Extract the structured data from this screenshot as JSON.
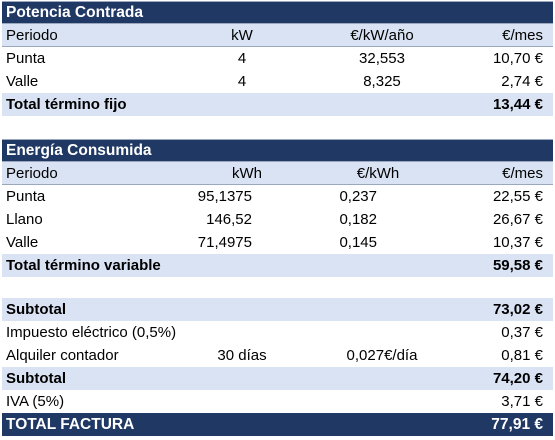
{
  "potencia": {
    "title": "Potencia Contrada",
    "headers": [
      "Periodo",
      "kW",
      "€/kW/año",
      "€/mes"
    ],
    "rows": [
      [
        "Punta",
        "4",
        "32,553",
        "10,70 €"
      ],
      [
        "Valle",
        "4",
        "8,325",
        "2,74 €"
      ]
    ],
    "total_label": "Total término fijo",
    "total_value": "13,44 €"
  },
  "energia": {
    "title": "Energía Consumida",
    "headers": [
      "Periodo",
      "kWh",
      "€/kWh",
      "€/mes"
    ],
    "rows": [
      [
        "Punta",
        "95,1375",
        "0,237",
        "22,55 €"
      ],
      [
        "Llano",
        "146,52",
        "0,182",
        "26,67 €"
      ],
      [
        "Valle",
        "71,4975",
        "0,145",
        "10,37 €"
      ]
    ],
    "total_label": "Total término variable",
    "total_value": "59,58 €"
  },
  "resumen": {
    "subtotal1_label": "Subtotal",
    "subtotal1_value": "73,02 €",
    "impuesto_label": "Impuesto eléctrico (0,5%)",
    "impuesto_value": "0,37 €",
    "alquiler_label": "Alquiler contador",
    "alquiler_dias": "30 días",
    "alquiler_precio": "0,027€/día",
    "alquiler_value": "0,81 €",
    "subtotal2_label": "Subtotal",
    "subtotal2_value": "74,20 €",
    "iva_label": "IVA (5%)",
    "iva_value": "3,71 €",
    "total_label": "TOTAL FACTURA",
    "total_value": "77,91 €"
  },
  "colors": {
    "header_bg": "#1f3864",
    "light_bg": "#dae3f3"
  }
}
